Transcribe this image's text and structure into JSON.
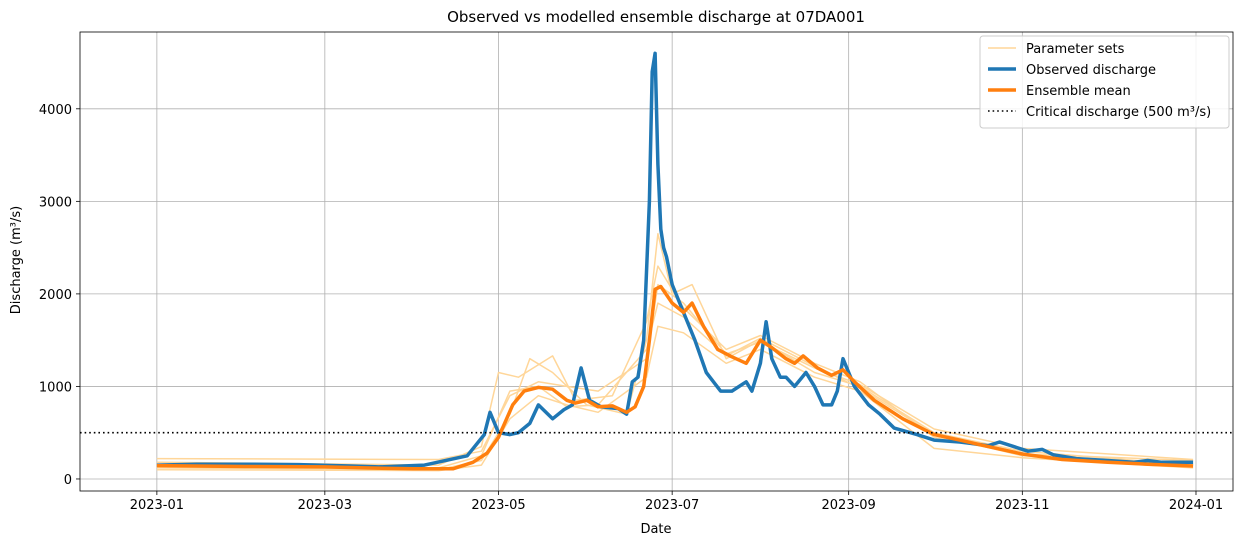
{
  "chart_data": {
    "type": "line",
    "title": "Observed vs modelled ensemble discharge at 07DA001",
    "xlabel": "Date",
    "ylabel": "Discharge (m³/s)",
    "xlim": [
      "2022-12-05",
      "2024-01-14"
    ],
    "ylim": [
      -130,
      4830
    ],
    "xticks": [
      {
        "value": "2023-01-01",
        "label": "2023-01"
      },
      {
        "value": "2023-03-01",
        "label": "2023-03"
      },
      {
        "value": "2023-05-01",
        "label": "2023-05"
      },
      {
        "value": "2023-07-01",
        "label": "2023-07"
      },
      {
        "value": "2023-09-01",
        "label": "2023-09"
      },
      {
        "value": "2023-11-01",
        "label": "2023-11"
      },
      {
        "value": "2024-01-01",
        "label": "2024-01"
      }
    ],
    "yticks": [
      0,
      1000,
      2000,
      3000,
      4000
    ],
    "grid": true,
    "legend_position": "top-right",
    "legend": [
      "Parameter sets",
      "Observed discharge",
      "Ensemble mean",
      "Critical discharge (500 m³/s)"
    ],
    "colors": {
      "parameter_sets": "#ffd699",
      "observed": "#1f77b4",
      "mean": "#ff7f0e",
      "threshold": "#000000"
    },
    "threshold": {
      "value": 500,
      "style": "dotted"
    },
    "observed": [
      [
        "2023-01-01",
        150
      ],
      [
        "2023-01-15",
        160
      ],
      [
        "2023-02-01",
        160
      ],
      [
        "2023-02-20",
        155
      ],
      [
        "2023-03-10",
        140
      ],
      [
        "2023-03-20",
        130
      ],
      [
        "2023-04-05",
        150
      ],
      [
        "2023-04-20",
        250
      ],
      [
        "2023-04-26",
        480
      ],
      [
        "2023-04-28",
        720
      ],
      [
        "2023-05-01",
        500
      ],
      [
        "2023-05-05",
        480
      ],
      [
        "2023-05-08",
        500
      ],
      [
        "2023-05-12",
        600
      ],
      [
        "2023-05-15",
        800
      ],
      [
        "2023-05-20",
        650
      ],
      [
        "2023-05-24",
        750
      ],
      [
        "2023-05-27",
        800
      ],
      [
        "2023-05-30",
        1200
      ],
      [
        "2023-06-02",
        850
      ],
      [
        "2023-06-06",
        780
      ],
      [
        "2023-06-12",
        760
      ],
      [
        "2023-06-15",
        700
      ],
      [
        "2023-06-17",
        1050
      ],
      [
        "2023-06-19",
        1100
      ],
      [
        "2023-06-21",
        1500
      ],
      [
        "2023-06-23",
        3000
      ],
      [
        "2023-06-24",
        4400
      ],
      [
        "2023-06-25",
        4600
      ],
      [
        "2023-06-26",
        3400
      ],
      [
        "2023-06-27",
        2700
      ],
      [
        "2023-06-28",
        2500
      ],
      [
        "2023-06-29",
        2400
      ],
      [
        "2023-07-01",
        2100
      ],
      [
        "2023-07-05",
        1800
      ],
      [
        "2023-07-09",
        1500
      ],
      [
        "2023-07-13",
        1150
      ],
      [
        "2023-07-18",
        950
      ],
      [
        "2023-07-22",
        950
      ],
      [
        "2023-07-27",
        1050
      ],
      [
        "2023-07-29",
        950
      ],
      [
        "2023-08-01",
        1250
      ],
      [
        "2023-08-03",
        1700
      ],
      [
        "2023-08-05",
        1300
      ],
      [
        "2023-08-08",
        1100
      ],
      [
        "2023-08-10",
        1100
      ],
      [
        "2023-08-13",
        1000
      ],
      [
        "2023-08-17",
        1150
      ],
      [
        "2023-08-20",
        1000
      ],
      [
        "2023-08-23",
        800
      ],
      [
        "2023-08-26",
        800
      ],
      [
        "2023-08-28",
        950
      ],
      [
        "2023-08-30",
        1300
      ],
      [
        "2023-09-03",
        1000
      ],
      [
        "2023-09-08",
        800
      ],
      [
        "2023-09-12",
        700
      ],
      [
        "2023-09-17",
        550
      ],
      [
        "2023-09-25",
        480
      ],
      [
        "2023-10-01",
        420
      ],
      [
        "2023-10-10",
        400
      ],
      [
        "2023-10-15",
        380
      ],
      [
        "2023-10-20",
        360
      ],
      [
        "2023-10-24",
        400
      ],
      [
        "2023-10-29",
        350
      ],
      [
        "2023-11-03",
        300
      ],
      [
        "2023-11-08",
        320
      ],
      [
        "2023-11-12",
        260
      ],
      [
        "2023-11-20",
        220
      ],
      [
        "2023-12-01",
        200
      ],
      [
        "2023-12-10",
        180
      ],
      [
        "2023-12-15",
        200
      ],
      [
        "2023-12-20",
        180
      ],
      [
        "2023-12-31",
        180
      ]
    ],
    "ensemble_mean": [
      [
        "2023-01-01",
        145
      ],
      [
        "2023-02-01",
        135
      ],
      [
        "2023-03-01",
        130
      ],
      [
        "2023-03-15",
        120
      ],
      [
        "2023-04-01",
        110
      ],
      [
        "2023-04-15",
        110
      ],
      [
        "2023-04-22",
        180
      ],
      [
        "2023-04-27",
        280
      ],
      [
        "2023-05-01",
        450
      ],
      [
        "2023-05-06",
        800
      ],
      [
        "2023-05-10",
        950
      ],
      [
        "2023-05-15",
        990
      ],
      [
        "2023-05-20",
        970
      ],
      [
        "2023-05-25",
        850
      ],
      [
        "2023-05-28",
        820
      ],
      [
        "2023-06-01",
        850
      ],
      [
        "2023-06-05",
        780
      ],
      [
        "2023-06-10",
        790
      ],
      [
        "2023-06-15",
        720
      ],
      [
        "2023-06-18",
        780
      ],
      [
        "2023-06-21",
        1000
      ],
      [
        "2023-06-23",
        1500
      ],
      [
        "2023-06-25",
        2050
      ],
      [
        "2023-06-27",
        2080
      ],
      [
        "2023-07-01",
        1900
      ],
      [
        "2023-07-05",
        1800
      ],
      [
        "2023-07-08",
        1900
      ],
      [
        "2023-07-12",
        1650
      ],
      [
        "2023-07-17",
        1400
      ],
      [
        "2023-07-22",
        1320
      ],
      [
        "2023-07-27",
        1250
      ],
      [
        "2023-08-01",
        1500
      ],
      [
        "2023-08-05",
        1420
      ],
      [
        "2023-08-10",
        1300
      ],
      [
        "2023-08-13",
        1250
      ],
      [
        "2023-08-16",
        1330
      ],
      [
        "2023-08-21",
        1200
      ],
      [
        "2023-08-26",
        1120
      ],
      [
        "2023-08-30",
        1180
      ],
      [
        "2023-09-03",
        1050
      ],
      [
        "2023-09-10",
        850
      ],
      [
        "2023-09-20",
        650
      ],
      [
        "2023-10-01",
        480
      ],
      [
        "2023-10-10",
        420
      ],
      [
        "2023-10-20",
        350
      ],
      [
        "2023-11-01",
        270
      ],
      [
        "2023-11-15",
        210
      ],
      [
        "2023-12-01",
        180
      ],
      [
        "2023-12-15",
        160
      ],
      [
        "2023-12-31",
        140
      ]
    ],
    "parameter_sets": [
      {
        "values": [
          [
            "2023-01-01",
            120
          ],
          [
            "2023-04-10",
            100
          ],
          [
            "2023-04-25",
            200
          ],
          [
            "2023-05-05",
            700
          ],
          [
            "2023-05-12",
            1300
          ],
          [
            "2023-05-20",
            1150
          ],
          [
            "2023-06-01",
            800
          ],
          [
            "2023-06-15",
            700
          ],
          [
            "2023-06-22",
            1500
          ],
          [
            "2023-06-26",
            2650
          ],
          [
            "2023-07-01",
            2000
          ],
          [
            "2023-07-08",
            2100
          ],
          [
            "2023-07-20",
            1300
          ],
          [
            "2023-08-01",
            1500
          ],
          [
            "2023-08-20",
            1150
          ],
          [
            "2023-09-05",
            1000
          ],
          [
            "2023-10-01",
            500
          ],
          [
            "2023-11-01",
            300
          ],
          [
            "2023-12-31",
            150
          ]
        ]
      },
      {
        "values": [
          [
            "2023-01-01",
            180
          ],
          [
            "2023-04-10",
            150
          ],
          [
            "2023-04-25",
            350
          ],
          [
            "2023-05-01",
            1150
          ],
          [
            "2023-05-08",
            1100
          ],
          [
            "2023-05-20",
            1330
          ],
          [
            "2023-05-28",
            850
          ],
          [
            "2023-06-10",
            900
          ],
          [
            "2023-06-22",
            1700
          ],
          [
            "2023-06-26",
            2300
          ],
          [
            "2023-07-05",
            1850
          ],
          [
            "2023-07-20",
            1400
          ],
          [
            "2023-08-01",
            1550
          ],
          [
            "2023-08-20",
            1250
          ],
          [
            "2023-09-05",
            1050
          ],
          [
            "2023-10-01",
            450
          ],
          [
            "2023-11-01",
            270
          ],
          [
            "2023-12-31",
            200
          ]
        ]
      },
      {
        "values": [
          [
            "2023-01-01",
            220
          ],
          [
            "2023-04-10",
            210
          ],
          [
            "2023-04-25",
            300
          ],
          [
            "2023-05-05",
            900
          ],
          [
            "2023-05-15",
            1050
          ],
          [
            "2023-05-25",
            1000
          ],
          [
            "2023-06-05",
            950
          ],
          [
            "2023-06-22",
            1300
          ],
          [
            "2023-06-26",
            2100
          ],
          [
            "2023-07-05",
            1900
          ],
          [
            "2023-07-20",
            1350
          ],
          [
            "2023-08-01",
            1480
          ],
          [
            "2023-08-20",
            1200
          ],
          [
            "2023-09-05",
            1020
          ],
          [
            "2023-10-01",
            540
          ],
          [
            "2023-11-01",
            330
          ],
          [
            "2023-12-31",
            210
          ]
        ]
      },
      {
        "values": [
          [
            "2023-01-01",
            100
          ],
          [
            "2023-04-10",
            90
          ],
          [
            "2023-04-25",
            150
          ],
          [
            "2023-05-05",
            650
          ],
          [
            "2023-05-15",
            900
          ],
          [
            "2023-05-25",
            800
          ],
          [
            "2023-06-05",
            720
          ],
          [
            "2023-06-22",
            1100
          ],
          [
            "2023-06-26",
            1650
          ],
          [
            "2023-07-05",
            1580
          ],
          [
            "2023-07-20",
            1250
          ],
          [
            "2023-08-01",
            1400
          ],
          [
            "2023-08-20",
            1100
          ],
          [
            "2023-09-05",
            950
          ],
          [
            "2023-10-01",
            330
          ],
          [
            "2023-11-01",
            230
          ],
          [
            "2023-12-31",
            120
          ]
        ]
      },
      {
        "values": [
          [
            "2023-01-01",
            150
          ],
          [
            "2023-04-10",
            120
          ],
          [
            "2023-04-25",
            250
          ],
          [
            "2023-05-05",
            950
          ],
          [
            "2023-05-15",
            1000
          ],
          [
            "2023-05-25",
            780
          ],
          [
            "2023-06-05",
            800
          ],
          [
            "2023-06-22",
            1400
          ],
          [
            "2023-06-26",
            1900
          ],
          [
            "2023-07-05",
            1750
          ],
          [
            "2023-07-20",
            1330
          ],
          [
            "2023-08-01",
            1520
          ],
          [
            "2023-08-20",
            1220
          ],
          [
            "2023-09-05",
            980
          ],
          [
            "2023-10-01",
            480
          ],
          [
            "2023-11-01",
            250
          ],
          [
            "2023-12-31",
            160
          ]
        ]
      }
    ]
  }
}
